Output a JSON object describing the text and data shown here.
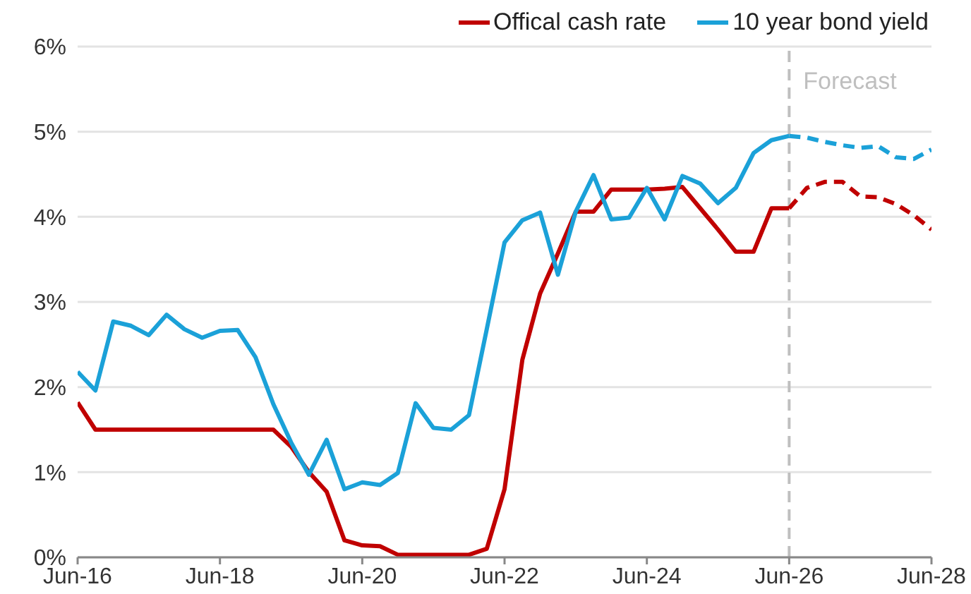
{
  "chart_data": {
    "type": "line",
    "xlim": [
      "2016-06",
      "2028-06"
    ],
    "xticks": [
      {
        "value": "2016-06",
        "label": "Jun-16"
      },
      {
        "value": "2018-06",
        "label": "Jun-18"
      },
      {
        "value": "2020-06",
        "label": "Jun-20"
      },
      {
        "value": "2022-06",
        "label": "Jun-22"
      },
      {
        "value": "2024-06",
        "label": "Jun-24"
      },
      {
        "value": "2026-06",
        "label": "Jun-26"
      },
      {
        "value": "2028-06",
        "label": "Jun-28"
      }
    ],
    "ylim": [
      0,
      6
    ],
    "yticks": [
      {
        "value": 0,
        "label": "0%"
      },
      {
        "value": 1,
        "label": "1%"
      },
      {
        "value": 2,
        "label": "2%"
      },
      {
        "value": 3,
        "label": "3%"
      },
      {
        "value": 4,
        "label": "4%"
      },
      {
        "value": 5,
        "label": "5%"
      },
      {
        "value": 6,
        "label": "6%"
      }
    ],
    "grid": "y",
    "legend": "top right",
    "marker": "none",
    "ref_lines": [
      {
        "axis": "x",
        "value": "2026-06",
        "label": "Forecast",
        "color": "#bfbfbf",
        "line_style": "dashed"
      }
    ],
    "series": [
      {
        "name": "Offical cash rate",
        "color": "#c00000",
        "line_style": "solid",
        "x": [
          "2016-06",
          "2016-09",
          "2016-12",
          "2017-03",
          "2017-06",
          "2017-09",
          "2017-12",
          "2018-03",
          "2018-06",
          "2018-09",
          "2018-12",
          "2019-03",
          "2019-06",
          "2019-09",
          "2019-12",
          "2020-03",
          "2020-06",
          "2020-09",
          "2020-12",
          "2021-03",
          "2021-06",
          "2021-09",
          "2021-12",
          "2022-03",
          "2022-06",
          "2022-09",
          "2022-12",
          "2023-03",
          "2023-06",
          "2023-09",
          "2023-12",
          "2024-03",
          "2024-06",
          "2024-09",
          "2024-12",
          "2025-03",
          "2025-06",
          "2025-09",
          "2025-12",
          "2026-03",
          "2026-06"
        ],
        "values": [
          1.82,
          1.5,
          1.5,
          1.5,
          1.5,
          1.5,
          1.5,
          1.5,
          1.5,
          1.5,
          1.5,
          1.5,
          1.3,
          1.0,
          0.77,
          0.2,
          0.14,
          0.13,
          0.03,
          0.03,
          0.03,
          0.03,
          0.03,
          0.1,
          0.8,
          2.32,
          3.1,
          3.57,
          4.06,
          4.06,
          4.32,
          4.32,
          4.32,
          4.33,
          4.35,
          4.1,
          3.85,
          3.59,
          3.59,
          4.1,
          4.1
        ]
      },
      {
        "name": "10 year bond yield",
        "color": "#1ba1d8",
        "line_style": "solid",
        "x": [
          "2016-06",
          "2016-09",
          "2016-12",
          "2017-03",
          "2017-06",
          "2017-09",
          "2017-12",
          "2018-03",
          "2018-06",
          "2018-09",
          "2018-12",
          "2019-03",
          "2019-06",
          "2019-09",
          "2019-12",
          "2020-03",
          "2020-06",
          "2020-09",
          "2020-12",
          "2021-03",
          "2021-06",
          "2021-09",
          "2021-12",
          "2022-03",
          "2022-06",
          "2022-09",
          "2022-12",
          "2023-03",
          "2023-06",
          "2023-09",
          "2023-12",
          "2024-03",
          "2024-06",
          "2024-09",
          "2024-12",
          "2025-03",
          "2025-06",
          "2025-09",
          "2025-12",
          "2026-03",
          "2026-06"
        ],
        "values": [
          2.18,
          1.96,
          2.77,
          2.72,
          2.61,
          2.85,
          2.68,
          2.58,
          2.66,
          2.67,
          2.35,
          1.8,
          1.35,
          0.97,
          1.38,
          0.8,
          0.88,
          0.85,
          0.99,
          1.81,
          1.52,
          1.5,
          1.67,
          2.68,
          3.7,
          3.96,
          4.05,
          3.32,
          4.06,
          4.49,
          3.97,
          3.99,
          4.34,
          3.97,
          4.48,
          4.39,
          4.16,
          4.34,
          4.75,
          4.9,
          4.95
        ]
      },
      {
        "color": "#c00000",
        "line_style": "dashed",
        "x": [
          "2026-06",
          "2026-09",
          "2026-12",
          "2027-03",
          "2027-06",
          "2027-09",
          "2027-12",
          "2028-03",
          "2028-06"
        ],
        "values": [
          4.1,
          4.34,
          4.41,
          4.41,
          4.24,
          4.23,
          4.15,
          4.02,
          3.85
        ]
      },
      {
        "color": "#1ba1d8",
        "line_style": "dashed",
        "x": [
          "2026-06",
          "2026-09",
          "2026-12",
          "2027-03",
          "2027-06",
          "2027-09",
          "2027-12",
          "2028-03",
          "2028-06"
        ],
        "values": [
          4.95,
          4.93,
          4.88,
          4.84,
          4.81,
          4.83,
          4.7,
          4.68,
          4.79
        ]
      }
    ]
  }
}
